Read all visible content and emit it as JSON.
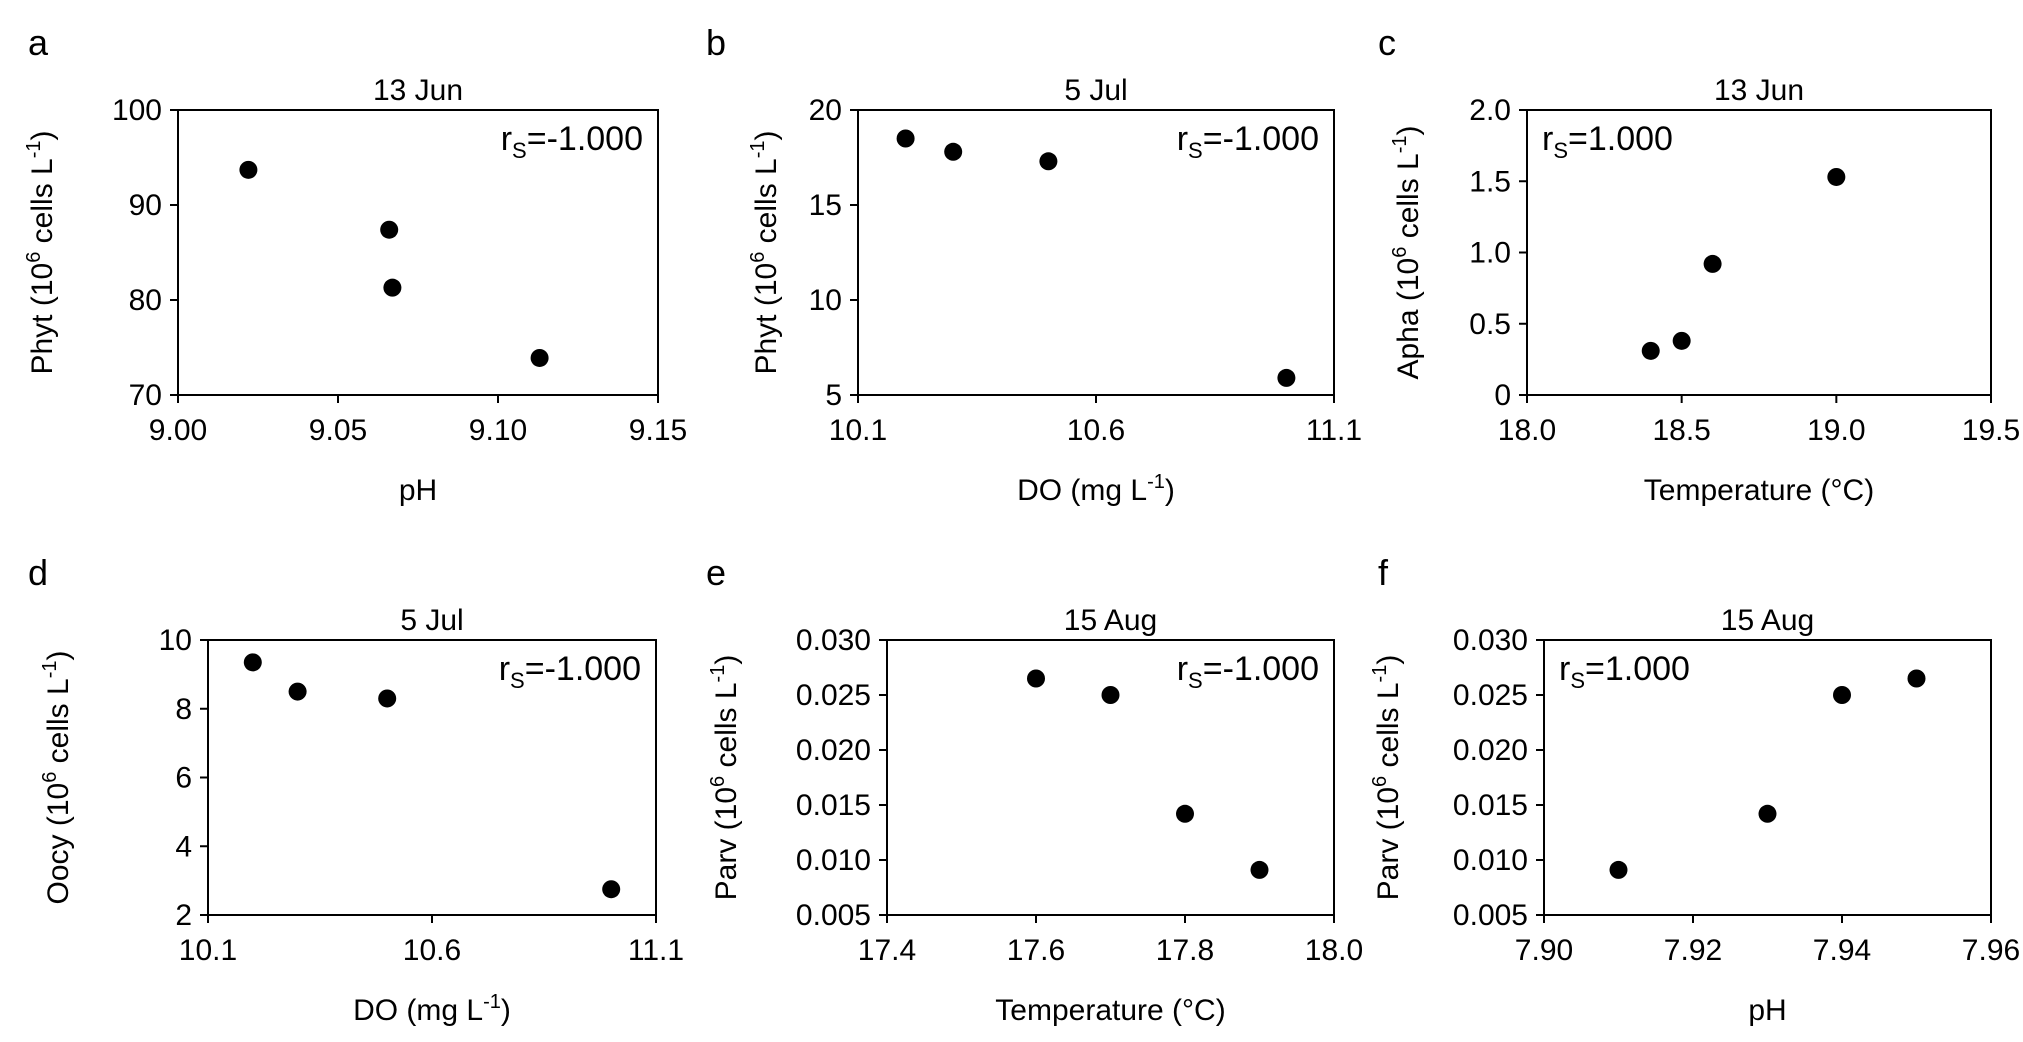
{
  "chart_data": [
    {
      "type": "scatter",
      "panel": "a",
      "title": "13 Jun",
      "ylabel_main": "Phyt (10",
      "ylabel_sup": "6",
      "ylabel_end": " cells L",
      "ylabel_sup2": "-1",
      "ylabel_close": ")",
      "xlabel": "pH",
      "xlabel_sup": "",
      "xlabel_end": "",
      "xlim": [
        9.0,
        9.15
      ],
      "ylim": [
        70,
        100
      ],
      "xticks": [
        9.0,
        9.05,
        9.1,
        9.15
      ],
      "xtick_labels": [
        "9.00",
        "9.05",
        "9.10",
        "9.15"
      ],
      "yticks": [
        70,
        80,
        90,
        100
      ],
      "ytick_labels": [
        "70",
        "80",
        "90",
        "100"
      ],
      "annotation": "=-1.000",
      "annotation_sub": "S",
      "annotation_prefix": "r",
      "annotation_pos": "top-right",
      "x": [
        9.022,
        9.066,
        9.067,
        9.113
      ],
      "y": [
        93.7,
        87.4,
        81.3,
        73.9
      ]
    },
    {
      "type": "scatter",
      "panel": "b",
      "title": "5 Jul",
      "ylabel_main": "Phyt (10",
      "ylabel_sup": "6",
      "ylabel_end": " cells L",
      "ylabel_sup2": "-1",
      "ylabel_close": ")",
      "xlabel": "DO (mg L",
      "xlabel_sup": "-1",
      "xlabel_end": ")",
      "xlim": [
        10.1,
        11.1
      ],
      "ylim": [
        5,
        20
      ],
      "xticks": [
        10.1,
        10.6,
        11.1
      ],
      "xtick_labels": [
        "10.1",
        "10.6",
        "11.1"
      ],
      "yticks": [
        5,
        10,
        15,
        20
      ],
      "ytick_labels": [
        "5",
        "10",
        "15",
        "20"
      ],
      "annotation": "=-1.000",
      "annotation_sub": "S",
      "annotation_prefix": "r",
      "annotation_pos": "top-right",
      "x": [
        10.2,
        10.3,
        10.5,
        11.0
      ],
      "y": [
        18.5,
        17.8,
        17.3,
        5.9
      ]
    },
    {
      "type": "scatter",
      "panel": "c",
      "title": "13 Jun",
      "ylabel_main": "Apha (10",
      "ylabel_sup": "6",
      "ylabel_end": " cells L",
      "ylabel_sup2": "-1",
      "ylabel_close": ")",
      "xlabel": "Temperature (°C)",
      "xlabel_sup": "",
      "xlabel_end": "",
      "xlim": [
        18.0,
        19.5
      ],
      "ylim": [
        0,
        2.0
      ],
      "xticks": [
        18.0,
        18.5,
        19.0,
        19.5
      ],
      "xtick_labels": [
        "18.0",
        "18.5",
        "19.0",
        "19.5"
      ],
      "yticks": [
        0,
        0.5,
        1.0,
        1.5,
        2.0
      ],
      "ytick_labels": [
        "0",
        "0.5",
        "1.0",
        "1.5",
        "2.0"
      ],
      "annotation": "=1.000",
      "annotation_sub": "S",
      "annotation_prefix": "r",
      "annotation_pos": "top-left",
      "x": [
        18.4,
        18.5,
        18.6,
        19.0
      ],
      "y": [
        0.31,
        0.38,
        0.92,
        1.53
      ]
    },
    {
      "type": "scatter",
      "panel": "d",
      "title": "5 Jul",
      "ylabel_main": "Oocy (10",
      "ylabel_sup": "6",
      "ylabel_end": " cells L",
      "ylabel_sup2": "-1",
      "ylabel_close": ")",
      "xlabel": "DO (mg L",
      "xlabel_sup": "-1",
      "xlabel_end": ")",
      "xlim": [
        10.1,
        11.1
      ],
      "ylim": [
        2,
        10
      ],
      "xticks": [
        10.1,
        10.6,
        11.1
      ],
      "xtick_labels": [
        "10.1",
        "10.6",
        "11.1"
      ],
      "yticks": [
        2,
        4,
        6,
        8,
        10
      ],
      "ytick_labels": [
        "2",
        "4",
        "6",
        "8",
        "10"
      ],
      "annotation": "=-1.000",
      "annotation_sub": "S",
      "annotation_prefix": "r",
      "annotation_pos": "top-right",
      "x": [
        10.2,
        10.3,
        10.5,
        11.0
      ],
      "y": [
        9.35,
        8.5,
        8.3,
        2.75
      ]
    },
    {
      "type": "scatter",
      "panel": "e",
      "title": "15 Aug",
      "ylabel_main": "Parv (10",
      "ylabel_sup": "6",
      "ylabel_end": " cells L",
      "ylabel_sup2": "-1",
      "ylabel_close": ")",
      "xlabel": "Temperature (°C)",
      "xlabel_sup": "",
      "xlabel_end": "",
      "xlim": [
        17.4,
        18.0
      ],
      "ylim": [
        0.005,
        0.03
      ],
      "xticks": [
        17.4,
        17.6,
        17.8,
        18.0
      ],
      "xtick_labels": [
        "17.4",
        "17.6",
        "17.8",
        "18.0"
      ],
      "yticks": [
        0.005,
        0.01,
        0.015,
        0.02,
        0.025,
        0.03
      ],
      "ytick_labels": [
        "0.005",
        "0.010",
        "0.015",
        "0.020",
        "0.025",
        "0.030"
      ],
      "annotation": "=-1.000",
      "annotation_sub": "S",
      "annotation_prefix": "r",
      "annotation_pos": "top-right",
      "x": [
        17.6,
        17.7,
        17.8,
        17.9
      ],
      "y": [
        0.0265,
        0.025,
        0.0142,
        0.0091
      ]
    },
    {
      "type": "scatter",
      "panel": "f",
      "title": "15 Aug",
      "ylabel_main": "Parv (10",
      "ylabel_sup": "6",
      "ylabel_end": " cells L",
      "ylabel_sup2": "-1",
      "ylabel_close": ")",
      "xlabel": "pH",
      "xlabel_sup": "",
      "xlabel_end": "",
      "xlim": [
        7.9,
        7.96
      ],
      "ylim": [
        0.005,
        0.03
      ],
      "xticks": [
        7.9,
        7.92,
        7.94,
        7.96
      ],
      "xtick_labels": [
        "7.90",
        "7.92",
        "7.94",
        "7.96"
      ],
      "yticks": [
        0.005,
        0.01,
        0.015,
        0.02,
        0.025,
        0.03
      ],
      "ytick_labels": [
        "0.005",
        "0.010",
        "0.015",
        "0.020",
        "0.025",
        "0.030"
      ],
      "annotation": "=1.000",
      "annotation_sub": "S",
      "annotation_prefix": "r",
      "annotation_pos": "top-left",
      "x": [
        7.91,
        7.93,
        7.94,
        7.95
      ],
      "y": [
        0.0091,
        0.0142,
        0.025,
        0.0265
      ]
    }
  ]
}
